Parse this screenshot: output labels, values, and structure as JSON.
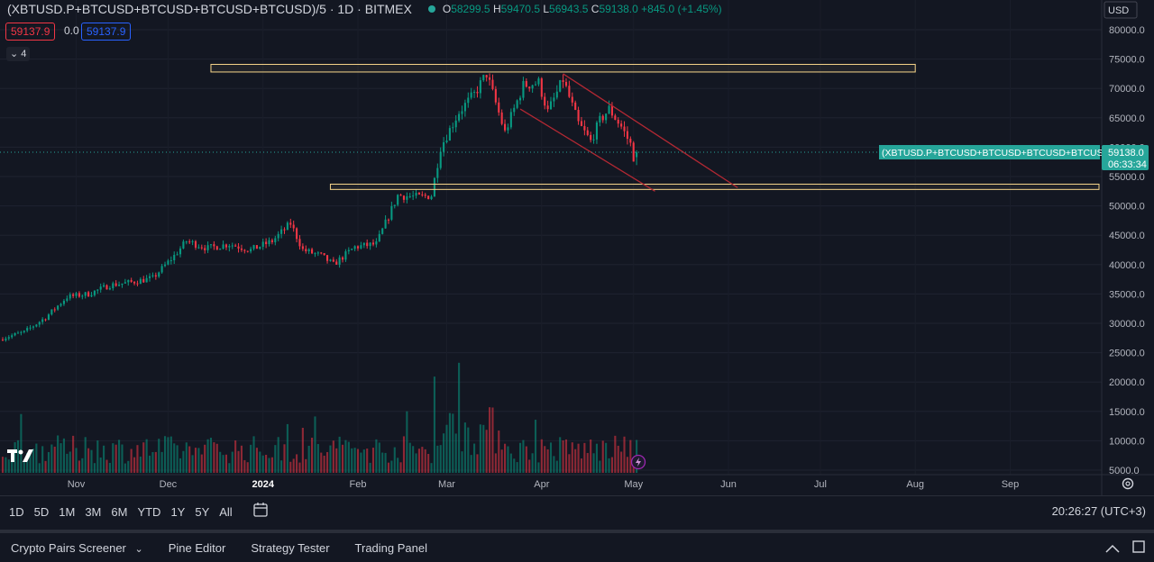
{
  "legend": {
    "symbol": "(XBTUSD.P+BTCUSD+BTCUSD+BTCUSD+BTCUSD)/5 · 1D · BITMEX",
    "o_key": "O",
    "o": "58299.5",
    "h_key": "H",
    "h": "59470.5",
    "l_key": "L",
    "l": "56943.5",
    "c_key": "C",
    "c": "59138.0",
    "change": "+845.0 (+1.45%)"
  },
  "bid": "59137.9",
  "spread": "0.0",
  "ask": "59137.9",
  "collapse_label": "4",
  "currency": "USD",
  "price_label": "59138.0",
  "countdown": "06:33:34",
  "series_label": "(XBTUSD.P+BTCUSD+BTCUSD+BTCUSD+BTCUSD)/5",
  "colors": {
    "up": "#089981",
    "down": "#f23645",
    "zone": "#f7d58a",
    "channel": "#b22833",
    "bg": "#131722"
  },
  "ranges": [
    "1D",
    "5D",
    "1M",
    "3M",
    "6M",
    "YTD",
    "1Y",
    "5Y",
    "All"
  ],
  "clock": "20:26:27 (UTC+3)",
  "panels": {
    "screener": "Crypto Pairs Screener",
    "pine": "Pine Editor",
    "strategy": "Strategy Tester",
    "trading": "Trading Panel"
  },
  "chart_data": {
    "type": "candlestick",
    "y_ticks": [
      80000,
      75000,
      70000,
      65000,
      60000,
      55000,
      50000,
      45000,
      40000,
      35000,
      30000,
      25000,
      20000,
      15000,
      10000,
      5000
    ],
    "y_tick_labels": [
      "80000.0",
      "75000.0",
      "70000.0",
      "65000.0",
      "60000.0",
      "55000.0",
      "50000.0",
      "45000.0",
      "40000.0",
      "35000.0",
      "30000.0",
      "25000.0",
      "20000.0",
      "15000.0",
      "10000.0",
      "5000.0"
    ],
    "ylim": [
      4700,
      82500
    ],
    "x_range": [
      "2023-10-08",
      "2024-09-30"
    ],
    "x_ticks": [
      {
        "date": "2023-11-01",
        "label": "Nov"
      },
      {
        "date": "2023-12-01",
        "label": "Dec"
      },
      {
        "date": "2024-01-01",
        "label": "2024"
      },
      {
        "date": "2024-02-01",
        "label": "Feb"
      },
      {
        "date": "2024-03-01",
        "label": "Mar"
      },
      {
        "date": "2024-04-01",
        "label": "Apr"
      },
      {
        "date": "2024-05-01",
        "label": "May"
      },
      {
        "date": "2024-06-01",
        "label": "Jun"
      },
      {
        "date": "2024-07-01",
        "label": "Jul"
      },
      {
        "date": "2024-08-01",
        "label": "Aug"
      },
      {
        "date": "2024-09-01",
        "label": "Sep"
      }
    ],
    "close_path": [
      [
        "2023-10-08",
        27500
      ],
      [
        "2023-10-15",
        28500
      ],
      [
        "2023-10-22",
        31000
      ],
      [
        "2023-10-29",
        34500
      ],
      [
        "2023-11-05",
        35000
      ],
      [
        "2023-11-12",
        36500
      ],
      [
        "2023-11-19",
        37000
      ],
      [
        "2023-11-26",
        37700
      ],
      [
        "2023-12-03",
        41500
      ],
      [
        "2023-12-07",
        44000
      ],
      [
        "2023-12-14",
        42800
      ],
      [
        "2023-12-21",
        43500
      ],
      [
        "2023-12-28",
        42500
      ],
      [
        "2024-01-04",
        44000
      ],
      [
        "2024-01-10",
        47000
      ],
      [
        "2024-01-14",
        42500
      ],
      [
        "2024-01-20",
        41500
      ],
      [
        "2024-01-24",
        40000
      ],
      [
        "2024-01-31",
        43000
      ],
      [
        "2024-02-07",
        43500
      ],
      [
        "2024-02-14",
        51800
      ],
      [
        "2024-02-21",
        51500
      ],
      [
        "2024-02-25",
        51800
      ],
      [
        "2024-02-28",
        60000
      ],
      [
        "2024-03-05",
        66000
      ],
      [
        "2024-03-10",
        69000
      ],
      [
        "2024-03-14",
        72500
      ],
      [
        "2024-03-20",
        62500
      ],
      [
        "2024-03-26",
        70500
      ],
      [
        "2024-03-31",
        71000
      ],
      [
        "2024-04-03",
        66000
      ],
      [
        "2024-04-08",
        71500
      ],
      [
        "2024-04-13",
        64000
      ],
      [
        "2024-04-17",
        61000
      ],
      [
        "2024-04-20",
        64500
      ],
      [
        "2024-04-23",
        66500
      ],
      [
        "2024-04-27",
        63500
      ],
      [
        "2024-04-30",
        60500
      ],
      [
        "2024-05-01",
        58300
      ],
      [
        "2024-05-02",
        59138
      ]
    ],
    "zones": [
      {
        "x0": "2023-12-15",
        "x1": "2024-08-01",
        "y0": 72800,
        "y1": 74100
      },
      {
        "x0": "2024-01-23",
        "x1": "2024-09-30",
        "y0": 52800,
        "y1": 53700
      }
    ],
    "channel": [
      {
        "x0": "2024-04-08",
        "y0": 72500,
        "x1": "2024-06-04",
        "y1": 53100
      },
      {
        "x0": "2024-03-25",
        "y0": 66500,
        "x1": "2024-05-08",
        "y1": 52500
      }
    ],
    "last_price": 59138.0,
    "volume_max_ref": 25000
  }
}
